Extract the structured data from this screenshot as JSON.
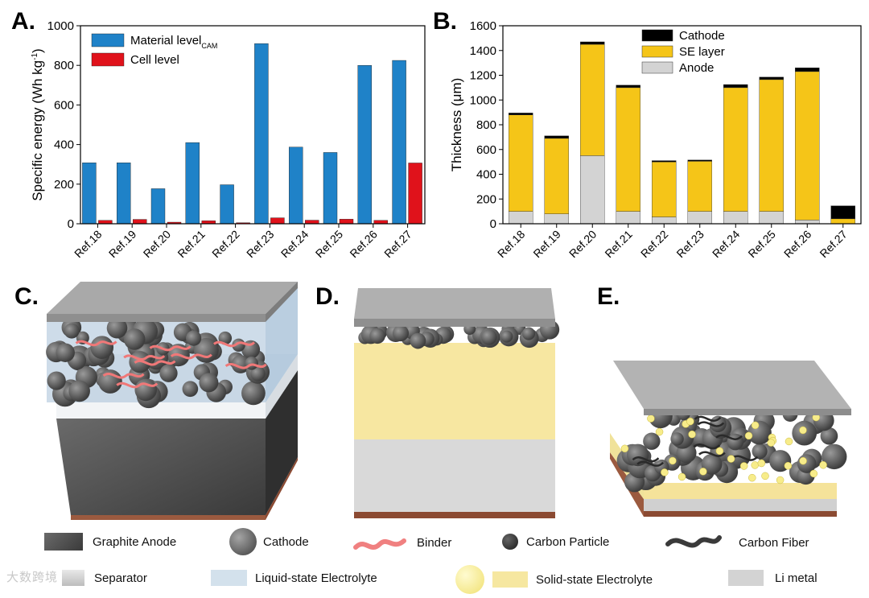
{
  "panels": {
    "a": "A.",
    "b": "B.",
    "c": "C.",
    "d": "D.",
    "e": "E."
  },
  "chart_data": [
    {
      "type": "bar",
      "panel": "A.",
      "ylabel": "Specific energy (Wh kg⁻¹)",
      "ylabel_base": "Specific energy (Wh kg",
      "ylabel_sup": "-1",
      "ylabel_close": ")",
      "ylim": [
        0,
        1000
      ],
      "yticks": [
        0,
        200,
        400,
        600,
        800,
        1000
      ],
      "categories": [
        "Ref.18",
        "Ref.19",
        "Ref.20",
        "Ref.21",
        "Ref.22",
        "Ref.23",
        "Ref.24",
        "Ref.25",
        "Ref.26",
        "Ref.27"
      ],
      "series": [
        {
          "name": "Material level CAM",
          "label_base": "Material level",
          "label_sub": "CAM",
          "color": "#1f82c8",
          "values": [
            308,
            308,
            177,
            410,
            197,
            910,
            387,
            360,
            800,
            825
          ]
        },
        {
          "name": "Cell level",
          "label_base": "Cell level",
          "color": "#e0121b",
          "values": [
            17,
            22,
            8,
            15,
            5,
            30,
            18,
            23,
            17,
            307
          ]
        }
      ],
      "legend_position": "top-left"
    },
    {
      "type": "stacked-bar",
      "panel": "B.",
      "ylabel": "Thickness (μm)",
      "ylim": [
        0,
        1600
      ],
      "yticks": [
        0,
        200,
        400,
        600,
        800,
        1000,
        1200,
        1400,
        1600
      ],
      "categories": [
        "Ref.18",
        "Ref.19",
        "Ref.20",
        "Ref.21",
        "Ref.22",
        "Ref.23",
        "Ref.24",
        "Ref.25",
        "Ref.26",
        "Ref.27"
      ],
      "series": [
        {
          "name": "Anode",
          "color": "#d3d3d3",
          "values": [
            100,
            80,
            550,
            100,
            55,
            100,
            100,
            100,
            30,
            0
          ]
        },
        {
          "name": "SE layer",
          "color": "#f5c518",
          "values": [
            780,
            610,
            900,
            1000,
            445,
            405,
            1000,
            1065,
            1200,
            40
          ]
        },
        {
          "name": "Cathode",
          "color": "#000000",
          "values": [
            15,
            20,
            20,
            20,
            10,
            10,
            25,
            20,
            30,
            105
          ]
        }
      ],
      "legend_order": [
        "Cathode",
        "SE layer",
        "Anode"
      ],
      "legend_position": "top-center"
    }
  ],
  "legend": {
    "graphite_anode": "Graphite Anode",
    "cathode": "Cathode",
    "binder": "Binder",
    "carbon_particle": "Carbon Particle",
    "carbon_fiber": "Carbon Fiber",
    "separator": "Separator",
    "liquid_electrolyte": "Liquid-state Electrolyte",
    "solid_electrolyte": "Solid-state Electrolyte",
    "li_metal": "Li metal"
  },
  "watermark": "大数跨境"
}
